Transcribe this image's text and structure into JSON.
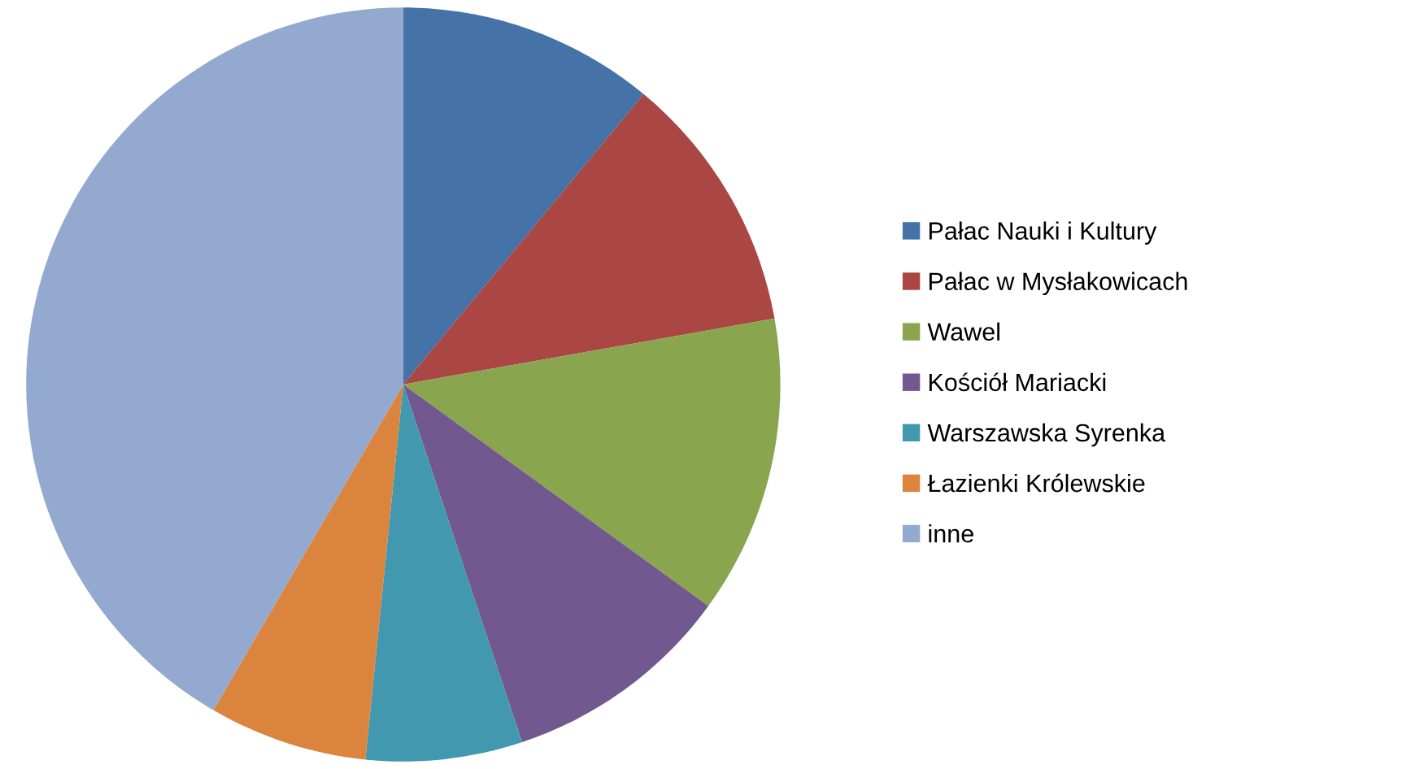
{
  "chart_data": {
    "type": "pie",
    "categories": [
      "Pałac Nauki i Kultury",
      "Pałac w Mysłakowicach",
      "Wawel",
      "Kościół Mariacki",
      "Warszawska Syrenka",
      "Łazienki Królewskie",
      "inne"
    ],
    "values": [
      11,
      11.2,
      12.8,
      9.9,
      6.7,
      6.8,
      41.6
    ],
    "colors": [
      "#4572a7",
      "#aa4643",
      "#89a54e",
      "#71588f",
      "#4198af",
      "#db843d",
      "#93a9cf"
    ],
    "legend": "right"
  }
}
